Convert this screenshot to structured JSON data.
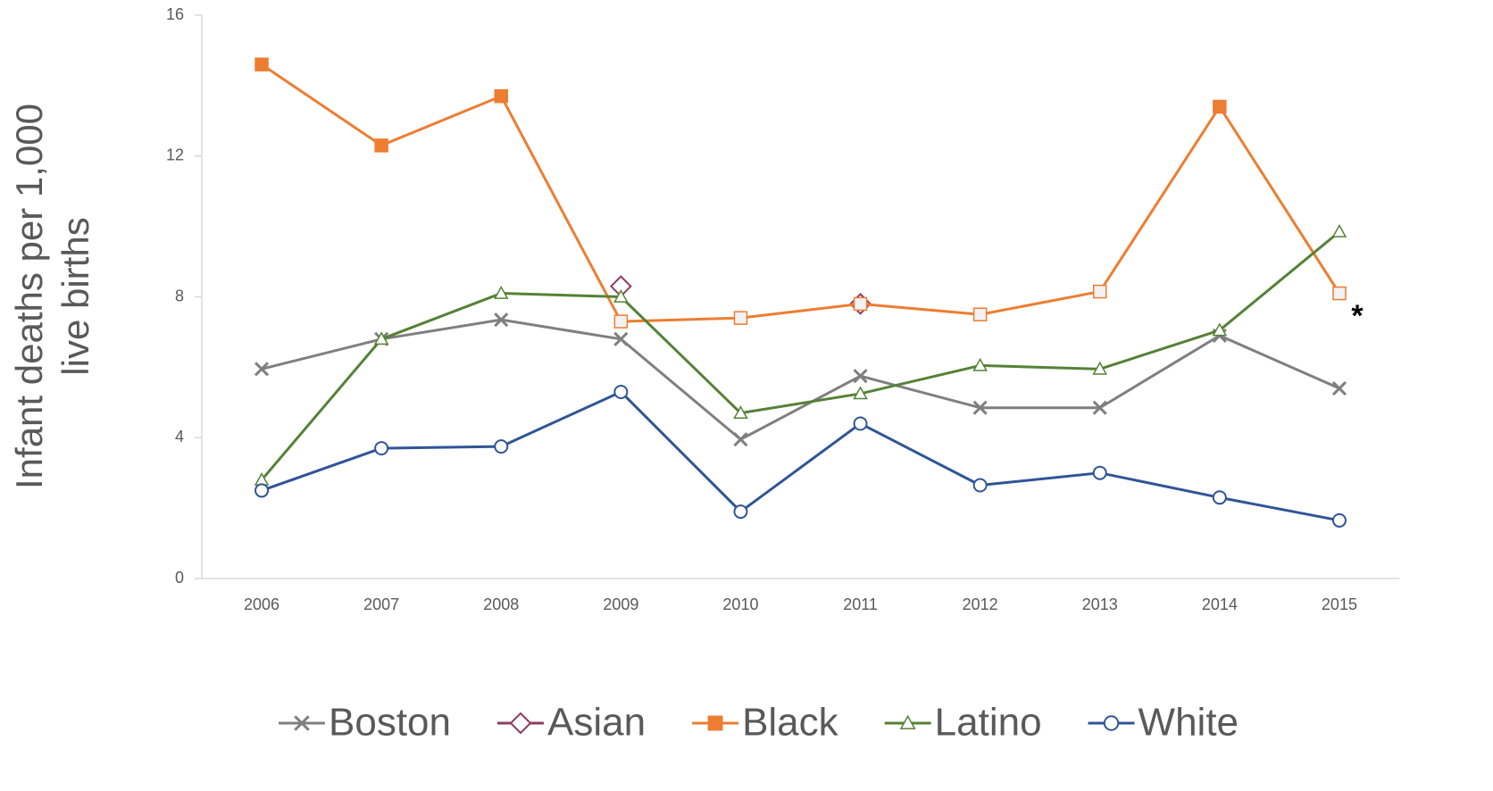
{
  "chart_data": {
    "type": "line",
    "y_label": [
      "Infant deaths per 1,000",
      "live births"
    ],
    "categories": [
      "2006",
      "2007",
      "2008",
      "2009",
      "2010",
      "2011",
      "2012",
      "2013",
      "2014",
      "2015"
    ],
    "ylim": [
      0,
      16
    ],
    "yticks": [
      0,
      4,
      8,
      12,
      16
    ],
    "grid": false,
    "annotation": "*",
    "legend": "bottom",
    "series": [
      {
        "name": "Boston",
        "color": "#7f7f7f",
        "marker": "x",
        "values": [
          5.95,
          6.8,
          7.35,
          6.8,
          3.95,
          5.75,
          4.85,
          4.85,
          6.9,
          5.4
        ]
      },
      {
        "name": "Asian",
        "color": "#8e3b63",
        "marker": "diamond",
        "values": [
          null,
          null,
          null,
          8.3,
          null,
          7.8,
          null,
          null,
          null,
          null
        ]
      },
      {
        "name": "Black",
        "color": "#ed7d31",
        "marker": "square",
        "values": [
          14.6,
          12.3,
          13.7,
          7.3,
          7.4,
          7.8,
          7.5,
          8.15,
          13.4,
          8.1
        ],
        "marker_fills": [
          "#ed7d31",
          "#ed7d31",
          "#ed7d31",
          "#f2f2f2",
          "#f2f2f2",
          "#f2f2f2",
          "#f2f2f2",
          "#f2f2f2",
          "#ed7d31",
          "#f2f2f2"
        ]
      },
      {
        "name": "Latino",
        "color": "#548235",
        "marker": "triangle",
        "values": [
          2.8,
          6.8,
          8.1,
          8.0,
          4.7,
          5.25,
          6.05,
          5.95,
          7.05,
          9.85
        ]
      },
      {
        "name": "White",
        "color": "#2f5597",
        "marker": "circle",
        "values": [
          2.5,
          3.7,
          3.75,
          5.3,
          1.9,
          4.4,
          2.65,
          3.0,
          2.3,
          1.65
        ]
      }
    ]
  }
}
